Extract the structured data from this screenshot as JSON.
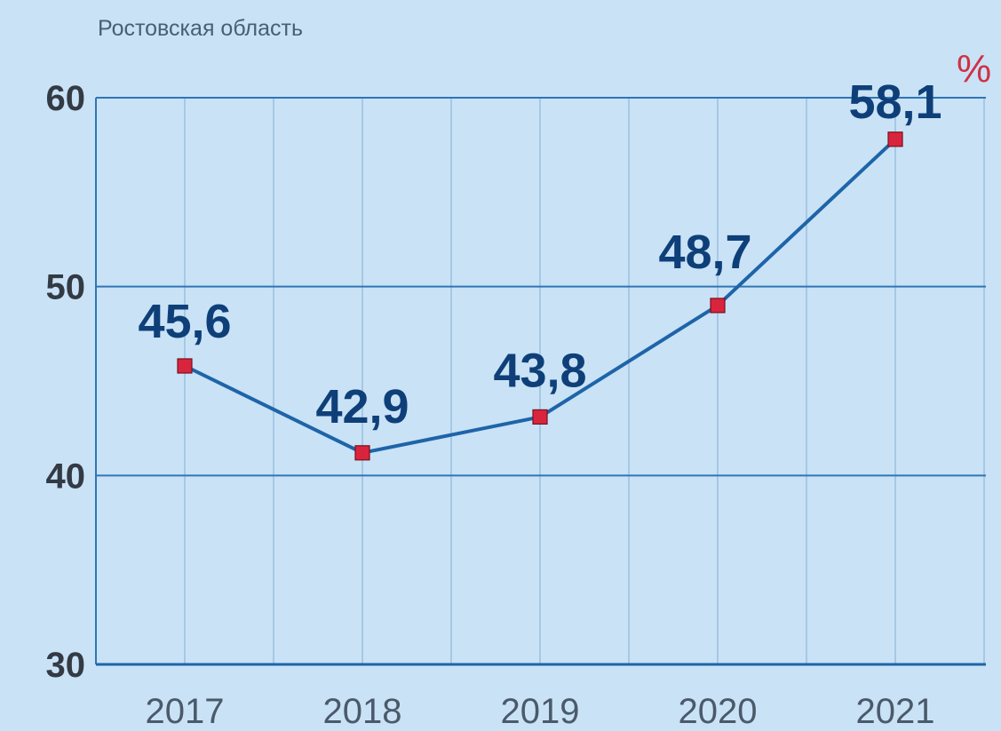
{
  "chart_data": {
    "type": "line",
    "subtitle": "Ростовская область",
    "unit": "%",
    "categories": [
      "2017",
      "2018",
      "2019",
      "2020",
      "2021"
    ],
    "series": [
      {
        "values": [
          45.6,
          42.9,
          43.8,
          48.7,
          58.1
        ],
        "plotted": [
          45.8,
          41.2,
          43.1,
          49.0,
          57.8
        ],
        "labels": [
          "45,6",
          "42,9",
          "43,8",
          "48,7",
          "58,1"
        ]
      }
    ],
    "ylim": [
      30,
      60
    ],
    "yticks": [
      30,
      40,
      50,
      60
    ],
    "grid": true,
    "colors": {
      "background": "#c9e2f6",
      "line": "#1e64a8",
      "marker": "#d8253d",
      "label": "#0e3f78",
      "unit": "#d03145"
    }
  }
}
